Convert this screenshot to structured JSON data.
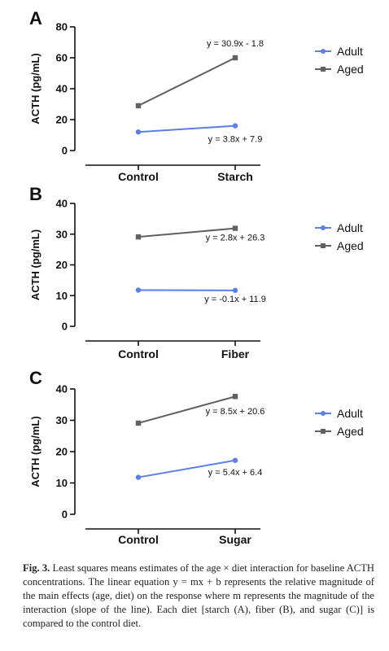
{
  "chart_data": [
    {
      "type": "line",
      "panel_label": "A",
      "categories": [
        "Control",
        "Starch"
      ],
      "ylabel": "ACTH (pg/mL)",
      "ylim": [
        0,
        80
      ],
      "yticks": [
        "0",
        "20",
        "40",
        "60",
        "80"
      ],
      "legend_position": "right",
      "series": [
        {
          "name": "Adult",
          "values": [
            12,
            16
          ],
          "color": "#5b7fe8",
          "marker": "circle",
          "equation": "y = 3.8x + 7.9"
        },
        {
          "name": "Aged",
          "values": [
            29,
            60
          ],
          "color": "#606060",
          "marker": "square",
          "equation": "y = 30.9x - 1.8"
        }
      ]
    },
    {
      "type": "line",
      "panel_label": "B",
      "categories": [
        "Control",
        "Fiber"
      ],
      "ylabel": "ACTH (pg/mL)",
      "ylim": [
        0,
        40
      ],
      "yticks": [
        "0",
        "10",
        "20",
        "30",
        "40"
      ],
      "legend_position": "right",
      "series": [
        {
          "name": "Adult",
          "values": [
            11.8,
            11.7
          ],
          "color": "#5b7fe8",
          "marker": "circle",
          "equation": "y = -0.1x + 11.9"
        },
        {
          "name": "Aged",
          "values": [
            29.1,
            31.9
          ],
          "color": "#606060",
          "marker": "square",
          "equation": "y = 2.8x + 26.3"
        }
      ]
    },
    {
      "type": "line",
      "panel_label": "C",
      "categories": [
        "Control",
        "Sugar"
      ],
      "ylabel": "ACTH (pg/mL)",
      "ylim": [
        0,
        40
      ],
      "yticks": [
        "0",
        "10",
        "20",
        "30",
        "40"
      ],
      "legend_position": "right",
      "series": [
        {
          "name": "Adult",
          "values": [
            11.8,
            17.2
          ],
          "color": "#5b7fe8",
          "marker": "circle",
          "equation": "y = 5.4x + 6.4"
        },
        {
          "name": "Aged",
          "values": [
            29.1,
            37.6
          ],
          "color": "#606060",
          "marker": "square",
          "equation": "y = 8.5x + 20.6"
        }
      ]
    }
  ],
  "caption": {
    "label": "Fig. 3.",
    "text": "Least squares means estimates of the age × diet interaction for baseline ACTH concentrations. The linear equation y = mx + b represents the relative magnitude of the main effects (age, diet) on the response where m represents the magnitude of the interaction (slope of the line). Each diet [starch (A), fiber (B), and sugar (C)] is compared to the control diet."
  }
}
